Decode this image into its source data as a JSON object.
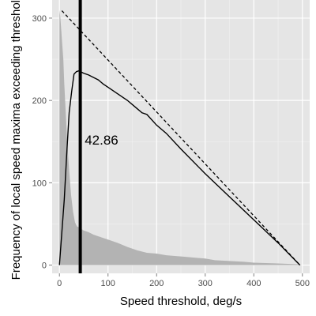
{
  "chart_data": {
    "type": "area",
    "xlabel": "Speed threshold, deg/s",
    "ylabel": "Frequency of local speed maxima exceeding threshold",
    "xlim": [
      -15,
      515
    ],
    "ylim": [
      -10,
      322
    ],
    "x_ticks": [
      0,
      100,
      200,
      300,
      400,
      500
    ],
    "y_ticks": [
      0,
      100,
      200,
      300
    ],
    "grid": true,
    "panel_background": "#e5e5e5",
    "grid_color": "#ffffff",
    "area": {
      "color": "#b3b3b3",
      "x": [
        0,
        2,
        5,
        8,
        10,
        13,
        16,
        20,
        24,
        28,
        32,
        36,
        40,
        45,
        50,
        60,
        70,
        80,
        100,
        120,
        140,
        160,
        180,
        200,
        220,
        240,
        260,
        280,
        300,
        320,
        350,
        380,
        400,
        450,
        490,
        500
      ],
      "y": [
        310,
        300,
        275,
        250,
        220,
        185,
        150,
        115,
        85,
        65,
        52,
        47,
        46,
        44,
        42,
        40,
        37,
        35,
        31,
        27,
        22,
        18,
        15,
        14,
        12,
        11,
        10,
        9,
        8,
        6,
        5,
        4,
        3,
        2,
        1,
        0
      ]
    },
    "solid_line": {
      "color": "#000000",
      "x": [
        0,
        5,
        10,
        15,
        20,
        25,
        30,
        35,
        40,
        50,
        60,
        70,
        80,
        90,
        100,
        120,
        140,
        160,
        170,
        180,
        200,
        220,
        250,
        300,
        350,
        400,
        450,
        495
      ],
      "y": [
        0,
        40,
        80,
        135,
        185,
        210,
        232,
        235,
        236,
        233,
        231,
        228,
        225,
        220,
        216,
        208,
        200,
        190,
        185,
        183,
        170,
        160,
        141,
        111,
        83,
        55,
        27,
        0
      ]
    },
    "dashed_line": {
      "color": "#000000",
      "x": [
        5,
        495
      ],
      "y": [
        309,
        0
      ]
    },
    "vertical_line": {
      "x": 42.86,
      "color": "#000000"
    },
    "annotation": {
      "text": "42.86",
      "x": 52,
      "y": 152
    }
  }
}
